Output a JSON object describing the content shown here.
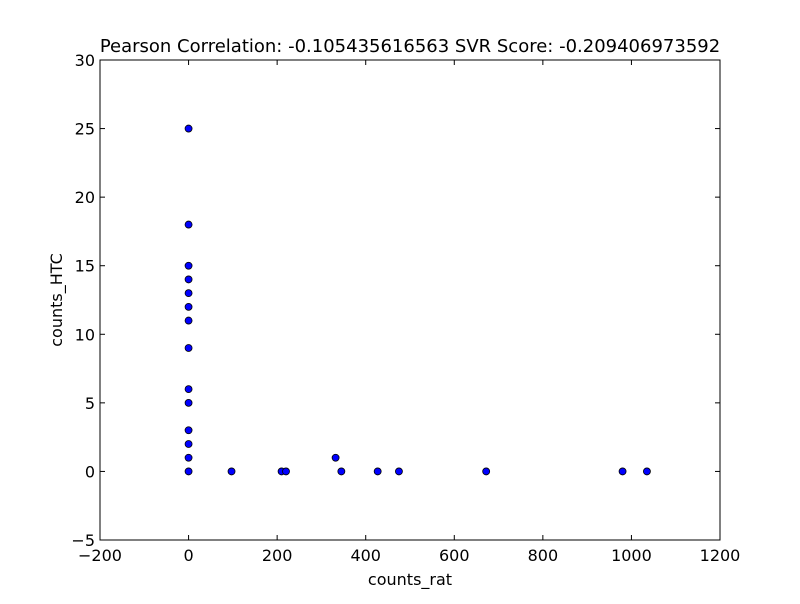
{
  "chart_data": {
    "type": "scatter",
    "title": "Pearson Correlation: -0.105435616563  SVR Score: -0.209406973592",
    "xlabel": "counts_rat",
    "ylabel": "counts_HTC",
    "xlim": [
      -200,
      1200
    ],
    "ylim": [
      -5,
      30
    ],
    "xticks": [
      -200,
      0,
      200,
      400,
      600,
      800,
      1000,
      1200
    ],
    "yticks": [
      -5,
      0,
      5,
      10,
      15,
      20,
      25,
      30
    ],
    "xtick_labels": [
      "−200",
      "0",
      "200",
      "400",
      "600",
      "800",
      "1000",
      "1200"
    ],
    "ytick_labels": [
      "−5",
      "0",
      "5",
      "10",
      "15",
      "20",
      "25",
      "30"
    ],
    "grid": false,
    "marker_color": "#0000ff",
    "marker_edge_color": "#000000",
    "points": [
      {
        "x": 0,
        "y": 25
      },
      {
        "x": 0,
        "y": 18
      },
      {
        "x": 0,
        "y": 15
      },
      {
        "x": 0,
        "y": 14
      },
      {
        "x": 0,
        "y": 13
      },
      {
        "x": 0,
        "y": 12
      },
      {
        "x": 0,
        "y": 11
      },
      {
        "x": 0,
        "y": 9
      },
      {
        "x": 0,
        "y": 6
      },
      {
        "x": 0,
        "y": 5
      },
      {
        "x": 0,
        "y": 3
      },
      {
        "x": 0,
        "y": 2
      },
      {
        "x": 0,
        "y": 1
      },
      {
        "x": 0,
        "y": 0
      },
      {
        "x": 97,
        "y": 0
      },
      {
        "x": 210,
        "y": 0
      },
      {
        "x": 220,
        "y": 0
      },
      {
        "x": 332,
        "y": 1
      },
      {
        "x": 345,
        "y": 0
      },
      {
        "x": 427,
        "y": 0
      },
      {
        "x": 475,
        "y": 0
      },
      {
        "x": 672,
        "y": 0
      },
      {
        "x": 980,
        "y": 0
      },
      {
        "x": 1035,
        "y": 0
      }
    ]
  }
}
